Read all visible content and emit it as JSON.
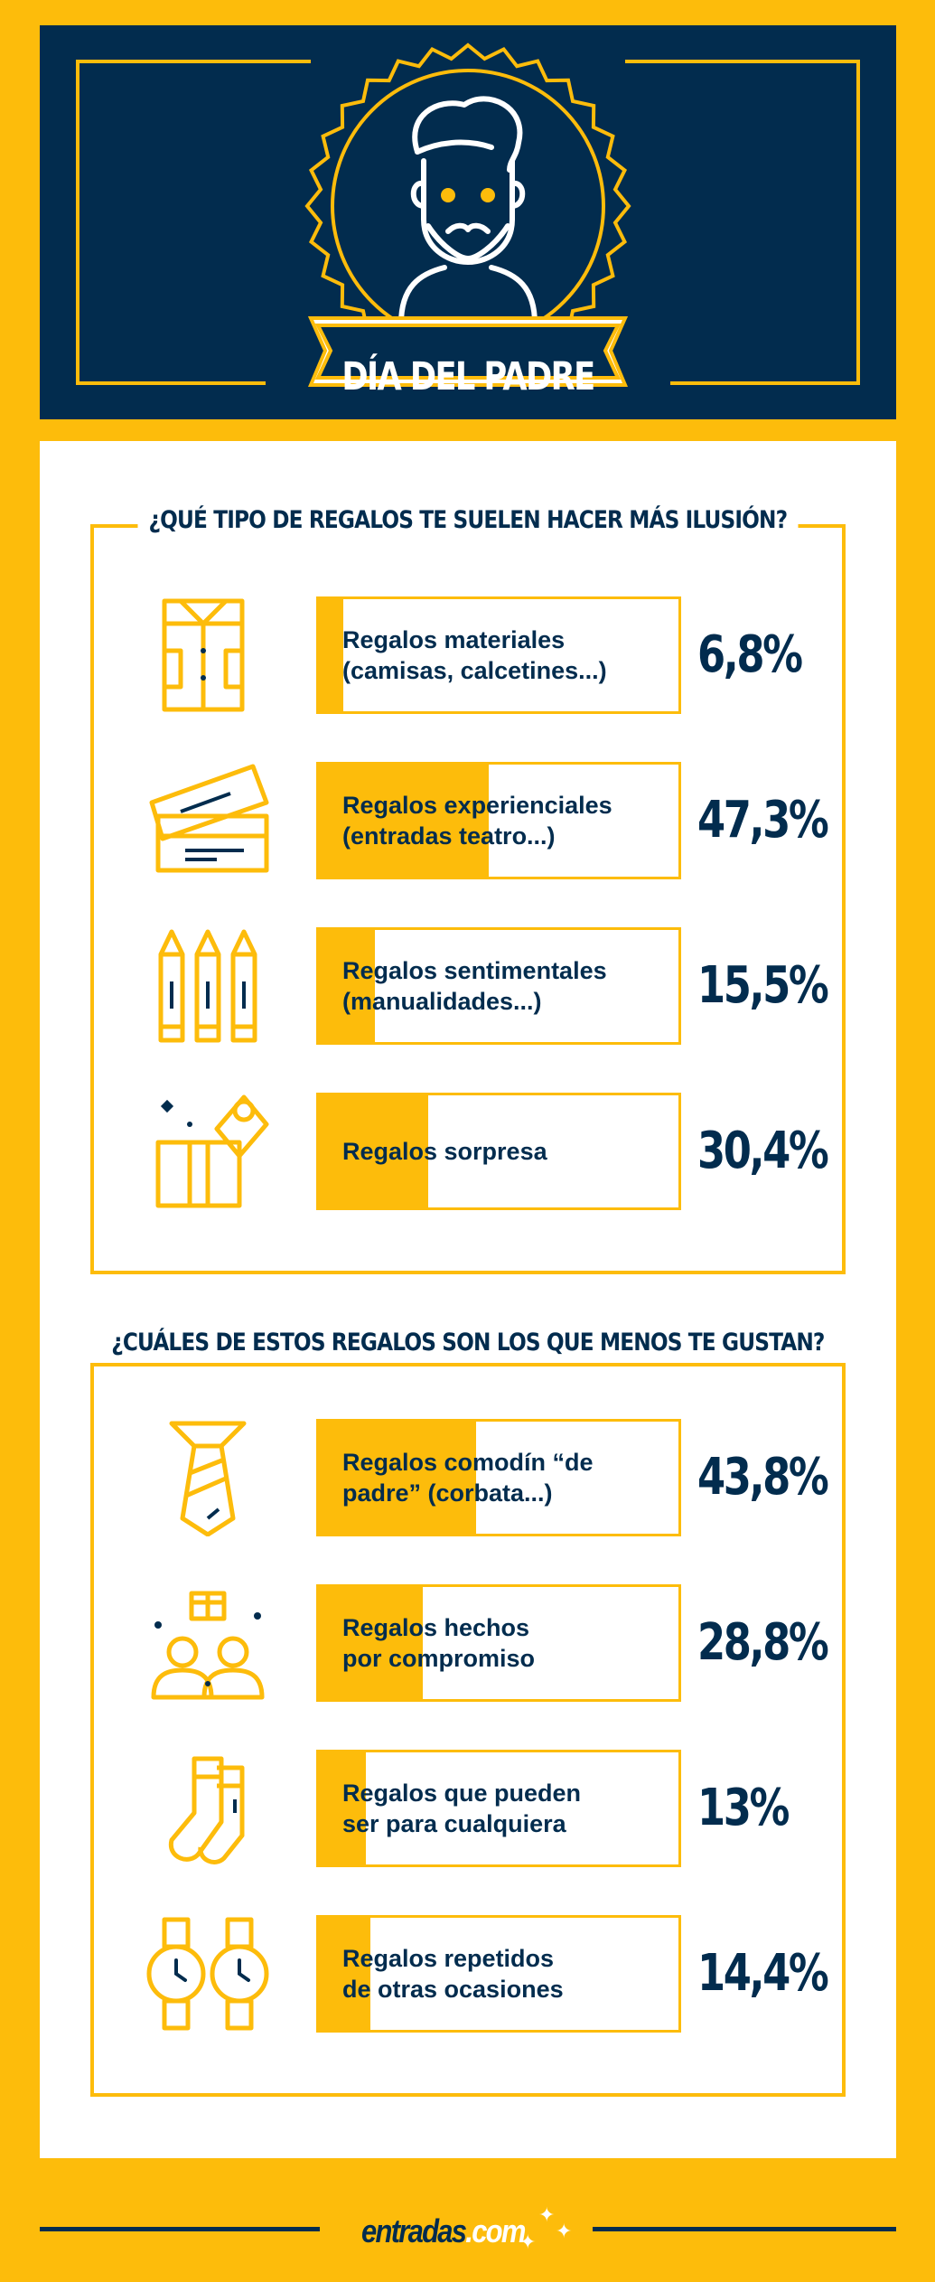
{
  "header": {
    "title": "DÍA DEL PADRE",
    "icon": "father-avatar-icon"
  },
  "colors": {
    "accent": "#FDBC0B",
    "navy": "#022C4E",
    "panel": "#FFFFFF"
  },
  "section1": {
    "title": "¿QUÉ TIPO DE REGALOS TE SUELEN HACER MÁS ILUSIÓN?",
    "items": [
      {
        "label": "Regalos materiales\n(camisas, calcetines...)",
        "value": "6,8%",
        "fraction": 0.068,
        "icon": "shirt-icon"
      },
      {
        "label": "Regalos experienciales\n(entradas teatro...)",
        "value": "47,3%",
        "fraction": 0.473,
        "icon": "tickets-icon"
      },
      {
        "label": "Regalos sentimentales\n(manualidades...)",
        "value": "15,5%",
        "fraction": 0.155,
        "icon": "crayons-icon"
      },
      {
        "label": "Regalos sorpresa",
        "value": "30,4%",
        "fraction": 0.304,
        "icon": "gift-box-icon"
      }
    ]
  },
  "section2": {
    "title": "¿CUÁLES DE ESTOS REGALOS SON LOS QUE MENOS TE GUSTAN?",
    "items": [
      {
        "label": "Regalos comodín “de\npadre” (corbata...)",
        "value": "43,8%",
        "fraction": 0.438,
        "icon": "tie-icon"
      },
      {
        "label": "Regalos hechos\npor compromiso",
        "value": "28,8%",
        "fraction": 0.288,
        "icon": "people-gift-icon"
      },
      {
        "label": "Regalos que pueden\nser para cualquiera",
        "value": "13%",
        "fraction": 0.13,
        "icon": "socks-icon"
      },
      {
        "label": "Regalos repetidos\nde otras ocasiones",
        "value": "14,4%",
        "fraction": 0.144,
        "icon": "watches-icon"
      }
    ]
  },
  "footer": {
    "logo_main": "entradas",
    "logo_dot": ".com"
  }
}
